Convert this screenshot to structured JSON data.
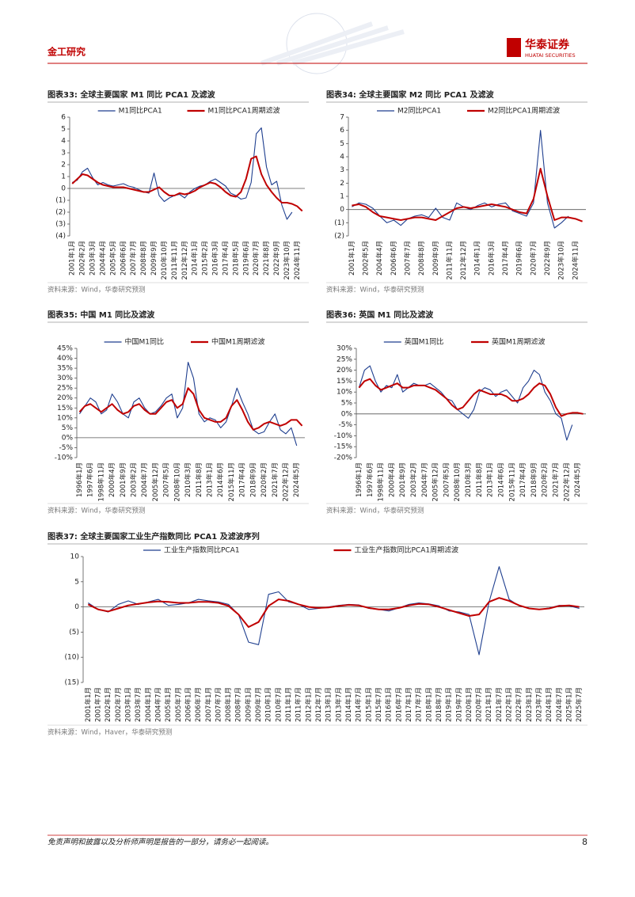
{
  "header": {
    "section": "金工研究",
    "brand": "华泰证券",
    "brand_en": "HUATAI SECURITIES"
  },
  "footer": {
    "disclaimer": "免责声明和披露以及分析师声明是报告的一部分，请务必一起阅读。",
    "page": 8
  },
  "chart_data": [
    {
      "type": "line",
      "title": "图表33:  全球主要国家 M1 同比 PCA1 及滤波",
      "source": "资料来源：Wind，华泰研究预测",
      "categories": [
        "2001年1月",
        null,
        "2002年2月",
        null,
        "2003年3月",
        null,
        "2004年4月",
        null,
        "2005年5月",
        null,
        "2006年6月",
        null,
        "2007年7月",
        null,
        "2008年8月",
        null,
        "2009年9月",
        null,
        "2010年10月",
        null,
        "2011年11月",
        null,
        "2012年12月",
        null,
        "2014年1月",
        null,
        "2015年2月",
        null,
        "2016年3月",
        null,
        "2017年4月",
        null,
        "2018年5月",
        null,
        "2019年6月",
        null,
        "2020年7月",
        null,
        "2021年8月",
        null,
        "2022年9月",
        null,
        "2023年10月",
        null,
        "2024年11月",
        null
      ],
      "series": [
        {
          "name": "M1同比PCA1",
          "color": "#1f3f8f",
          "values": [
            0.5,
            0.7,
            1.4,
            1.7,
            0.9,
            0.3,
            0.5,
            0.3,
            0.2,
            0.3,
            0.4,
            0.2,
            0.1,
            -0.1,
            -0.3,
            -0.4,
            1.3,
            -0.6,
            -1.1,
            -0.8,
            -0.6,
            -0.5,
            -0.8,
            -0.3,
            0.0,
            0.2,
            0.3,
            0.6,
            0.8,
            0.5,
            0.2,
            -0.4,
            -0.6,
            -0.9,
            -0.8,
            0.5,
            4.6,
            5.1,
            1.8,
            0.3,
            0.6,
            -1.4,
            -2.6,
            -2.0,
            null,
            null
          ]
        },
        {
          "name": "M1同比PCA1周期滤波",
          "color": "#c00000",
          "values": [
            0.4,
            0.8,
            1.2,
            1.1,
            0.8,
            0.5,
            0.3,
            0.2,
            0.1,
            0.1,
            0.1,
            0.0,
            -0.1,
            -0.2,
            -0.3,
            -0.3,
            -0.1,
            0.1,
            -0.3,
            -0.6,
            -0.6,
            -0.4,
            -0.5,
            -0.4,
            -0.2,
            0.1,
            0.3,
            0.5,
            0.4,
            0.1,
            -0.3,
            -0.6,
            -0.7,
            -0.3,
            0.8,
            2.5,
            2.7,
            1.2,
            0.3,
            -0.3,
            -0.8,
            -1.2,
            -1.2,
            -1.3,
            -1.5,
            -1.9
          ]
        }
      ],
      "ylim": [
        -4,
        6
      ],
      "yticks": [
        {
          "value": -4,
          "label": "(4)"
        },
        {
          "value": -3,
          "label": "(3)"
        },
        {
          "value": -2,
          "label": "(2)"
        },
        {
          "value": -1,
          "label": "(1)"
        },
        0,
        1,
        2,
        3,
        4,
        5,
        6
      ],
      "legend": "top"
    },
    {
      "type": "line",
      "title": "图表34:  全球主要国家 M2 同比 PCA1 及滤波",
      "source": "资料来源：Wind，华泰研究预测",
      "categories": [
        "2001年1月",
        null,
        "2002年5月",
        null,
        "2004年4月",
        null,
        "2006年6月",
        null,
        "2007年7月",
        null,
        "2008年8月",
        null,
        "2009年9月",
        null,
        "2011年11月",
        null,
        "2012年12月",
        null,
        "2014年1月",
        null,
        "2016年3月",
        null,
        "2017年4月",
        null,
        "2019年6月",
        null,
        "2020年7月",
        null,
        "2022年9月",
        null,
        "2023年10月",
        null,
        "2024年11月",
        null
      ],
      "series": [
        {
          "name": "M2同比PCA1",
          "color": "#1f3f8f",
          "values": [
            0.2,
            0.5,
            0.4,
            0.1,
            -0.5,
            -1.0,
            -0.8,
            -1.2,
            -0.7,
            -0.5,
            -0.4,
            -0.6,
            0.1,
            -0.6,
            -0.8,
            0.5,
            0.2,
            0.0,
            0.3,
            0.5,
            0.2,
            0.4,
            0.5,
            -0.1,
            -0.3,
            -0.5,
            0.5,
            6.0,
            0.5,
            -1.4,
            -1.0,
            -0.5,
            null,
            null
          ]
        },
        {
          "name": "M2同比PCA1周期滤波",
          "color": "#c00000",
          "values": [
            0.3,
            0.4,
            0.2,
            -0.2,
            -0.5,
            -0.6,
            -0.7,
            -0.8,
            -0.7,
            -0.6,
            -0.6,
            -0.7,
            -0.8,
            -0.5,
            -0.2,
            0.1,
            0.2,
            0.1,
            0.2,
            0.3,
            0.4,
            0.3,
            0.2,
            0.0,
            -0.2,
            -0.3,
            0.8,
            3.1,
            1.0,
            -0.8,
            -0.6,
            -0.6,
            -0.7,
            -0.9
          ]
        }
      ],
      "ylim": [
        -2,
        7
      ],
      "yticks": [
        {
          "value": -2,
          "label": "(2)"
        },
        {
          "value": -1,
          "label": "(1)"
        },
        0,
        1,
        2,
        3,
        4,
        5,
        6,
        7
      ],
      "legend": "top"
    },
    {
      "type": "line",
      "title": "图表35:  中国 M1 同比及滤波",
      "source": "资料来源：Wind，华泰研究预测",
      "categories": [
        "1996年1月",
        null,
        "1997年6月",
        null,
        "1998年11月",
        null,
        "2000年4月",
        null,
        "2001年9月",
        null,
        "2003年2月",
        null,
        "2004年7月",
        null,
        "2005年12月",
        null,
        "2007年5月",
        null,
        "2008年10月",
        null,
        "2010年3月",
        null,
        "2011年8月",
        null,
        "2013年1月",
        null,
        "2014年6月",
        null,
        "2015年11月",
        null,
        "2017年4月",
        null,
        "2018年9月",
        null,
        "2020年2月",
        null,
        "2021年7月",
        null,
        "2022年12月",
        null,
        "2024年5月",
        null
      ],
      "series": [
        {
          "name": "中国M1同比",
          "color": "#1f3f8f",
          "values": [
            12,
            16,
            20,
            18,
            12,
            14,
            22,
            18,
            12,
            10,
            18,
            20,
            15,
            12,
            13,
            16,
            20,
            22,
            10,
            15,
            38,
            30,
            12,
            8,
            10,
            9,
            5,
            8,
            16,
            25,
            18,
            12,
            4,
            2,
            3,
            8,
            12,
            4,
            2,
            5,
            -4,
            null
          ]
        },
        {
          "name": "中国M1周期滤波",
          "color": "#c00000",
          "values": [
            13,
            16,
            17,
            15,
            13,
            15,
            17,
            14,
            12,
            13,
            16,
            17,
            14,
            12,
            12,
            15,
            18,
            19,
            15,
            17,
            25,
            22,
            14,
            10,
            9,
            8,
            8,
            10,
            16,
            19,
            14,
            8,
            4,
            5,
            7,
            8,
            7,
            6,
            7,
            9,
            9,
            6
          ]
        }
      ],
      "ylim": [
        -10,
        45
      ],
      "yticks": [
        {
          "value": -10,
          "label": "-10%"
        },
        {
          "value": -5,
          "label": "-5%"
        },
        {
          "value": 0,
          "label": "0%"
        },
        {
          "value": 5,
          "label": "5%"
        },
        {
          "value": 10,
          "label": "10%"
        },
        {
          "value": 15,
          "label": "15%"
        },
        {
          "value": 20,
          "label": "20%"
        },
        {
          "value": 25,
          "label": "25%"
        },
        {
          "value": 30,
          "label": "30%"
        },
        {
          "value": 35,
          "label": "35%"
        },
        {
          "value": 40,
          "label": "40%"
        },
        {
          "value": 45,
          "label": "45%"
        }
      ],
      "legend": "top"
    },
    {
      "type": "line",
      "title": "图表36:  英国 M1 同比及滤波",
      "source": "资料来源：Wind，华泰研究预测",
      "categories": [
        "1996年1月",
        null,
        "1997年6月",
        null,
        "1998年11月",
        null,
        "2000年4月",
        null,
        "2001年9月",
        null,
        "2003年2月",
        null,
        "2004年7月",
        null,
        "2005年12月",
        null,
        "2007年5月",
        null,
        "2008年10月",
        null,
        "2010年3月",
        null,
        "2011年8月",
        null,
        "2013年1月",
        null,
        "2014年6月",
        null,
        "2015年11月",
        null,
        "2017年4月",
        null,
        "2018年9月",
        null,
        "2020年2月",
        null,
        "2021年7月",
        null,
        "2022年12月",
        null,
        "2024年5月",
        null
      ],
      "series": [
        {
          "name": "英国M1同比",
          "color": "#1f3f8f",
          "values": [
            12,
            20,
            22,
            15,
            10,
            13,
            12,
            18,
            10,
            12,
            14,
            13,
            13,
            14,
            12,
            10,
            7,
            6,
            2,
            0,
            -2,
            2,
            10,
            12,
            11,
            8,
            10,
            11,
            8,
            5,
            12,
            15,
            20,
            18,
            10,
            6,
            0,
            -2,
            -12,
            -5,
            null,
            null
          ]
        },
        {
          "name": "英国M1周期滤波",
          "color": "#c00000",
          "values": [
            12,
            15,
            16,
            13,
            11,
            12,
            13,
            14,
            12,
            12,
            13,
            13,
            13,
            12,
            11,
            9,
            7,
            4,
            2,
            3,
            6,
            9,
            11,
            10,
            9,
            9,
            9,
            8,
            6,
            6,
            7,
            9,
            12,
            14,
            13,
            9,
            3,
            -1,
            0,
            0.5,
            0.5,
            0
          ]
        }
      ],
      "ylim": [
        -20,
        30
      ],
      "yticks": [
        {
          "value": -20,
          "label": "-20%"
        },
        {
          "value": -15,
          "label": "-15%"
        },
        {
          "value": -10,
          "label": "-10%"
        },
        {
          "value": -5,
          "label": "-5%"
        },
        {
          "value": 0,
          "label": "0%"
        },
        {
          "value": 5,
          "label": "5%"
        },
        {
          "value": 10,
          "label": "10%"
        },
        {
          "value": 15,
          "label": "15%"
        },
        {
          "value": 20,
          "label": "20%"
        },
        {
          "value": 25,
          "label": "25%"
        },
        {
          "value": 30,
          "label": "30%"
        }
      ],
      "legend": "top"
    },
    {
      "type": "line",
      "title": "图表37:  全球主要国家工业生产指数同比 PCA1 及滤波序列",
      "source": "资料来源：Wind，Haver，华泰研究预测",
      "categories": [
        "2001年1月",
        "2001年7月",
        "2002年1月",
        "2002年7月",
        "2003年1月",
        "2003年7月",
        "2004年1月",
        "2004年7月",
        "2005年1月",
        "2005年7月",
        "2006年1月",
        "2006年7月",
        "2007年1月",
        "2007年7月",
        "2008年1月",
        "2008年7月",
        "2009年1月",
        "2009年7月",
        "2010年1月",
        "2010年7月",
        "2011年1月",
        "2011年7月",
        "2012年1月",
        "2012年7月",
        "2013年1月",
        "2013年7月",
        "2014年1月",
        "2014年7月",
        "2015年1月",
        "2015年7月",
        "2016年1月",
        "2016年7月",
        "2017年1月",
        "2017年7月",
        "2018年1月",
        "2018年7月",
        "2019年1月",
        "2019年7月",
        "2020年1月",
        "2020年7月",
        "2021年1月",
        "2021年7月",
        "2022年1月",
        "2022年7月",
        "2023年1月",
        "2023年7月",
        "2024年1月",
        "2024年7月",
        "2025年1月",
        "2025年7月"
      ],
      "series": [
        {
          "name": "工业生产指数同比PCA1",
          "color": "#1f3f8f",
          "values": [
            0.8,
            -0.5,
            -1.0,
            0.5,
            1.2,
            0.5,
            1.0,
            1.5,
            0.3,
            0.5,
            0.8,
            1.5,
            1.2,
            1.0,
            0.5,
            -1.5,
            -7.0,
            -7.5,
            2.5,
            3.0,
            1.0,
            0.5,
            -0.5,
            -0.3,
            0.0,
            0.3,
            0.5,
            0.4,
            -0.3,
            -0.5,
            -0.8,
            -0.2,
            0.5,
            0.8,
            0.6,
            0.2,
            -0.8,
            -1.0,
            -1.5,
            -9.5,
            1.0,
            8.0,
            1.5,
            0.2,
            -0.3,
            -0.5,
            -0.2,
            0.3,
            0.2,
            -0.3
          ]
        },
        {
          "name": "工业生产指数同比PCA1周期滤波",
          "color": "#c00000",
          "values": [
            0.5,
            -0.5,
            -0.9,
            -0.3,
            0.3,
            0.6,
            0.9,
            1.1,
            1.0,
            0.8,
            0.8,
            1.0,
            1.0,
            0.8,
            0.2,
            -1.5,
            -4.0,
            -3.0,
            0.2,
            1.5,
            1.2,
            0.5,
            0.0,
            -0.2,
            -0.1,
            0.2,
            0.4,
            0.3,
            -0.2,
            -0.5,
            -0.5,
            -0.2,
            0.3,
            0.6,
            0.5,
            0.0,
            -0.6,
            -1.2,
            -1.8,
            -1.5,
            1.0,
            1.8,
            1.2,
            0.3,
            -0.3,
            -0.5,
            -0.3,
            0.2,
            0.3,
            0.0
          ]
        }
      ],
      "ylim": [
        -15,
        10
      ],
      "yticks": [
        {
          "value": -15,
          "label": "(15)"
        },
        {
          "value": -10,
          "label": "(10)"
        },
        {
          "value": -5,
          "label": "(5)"
        },
        0,
        5,
        10
      ],
      "legend": "top"
    }
  ]
}
